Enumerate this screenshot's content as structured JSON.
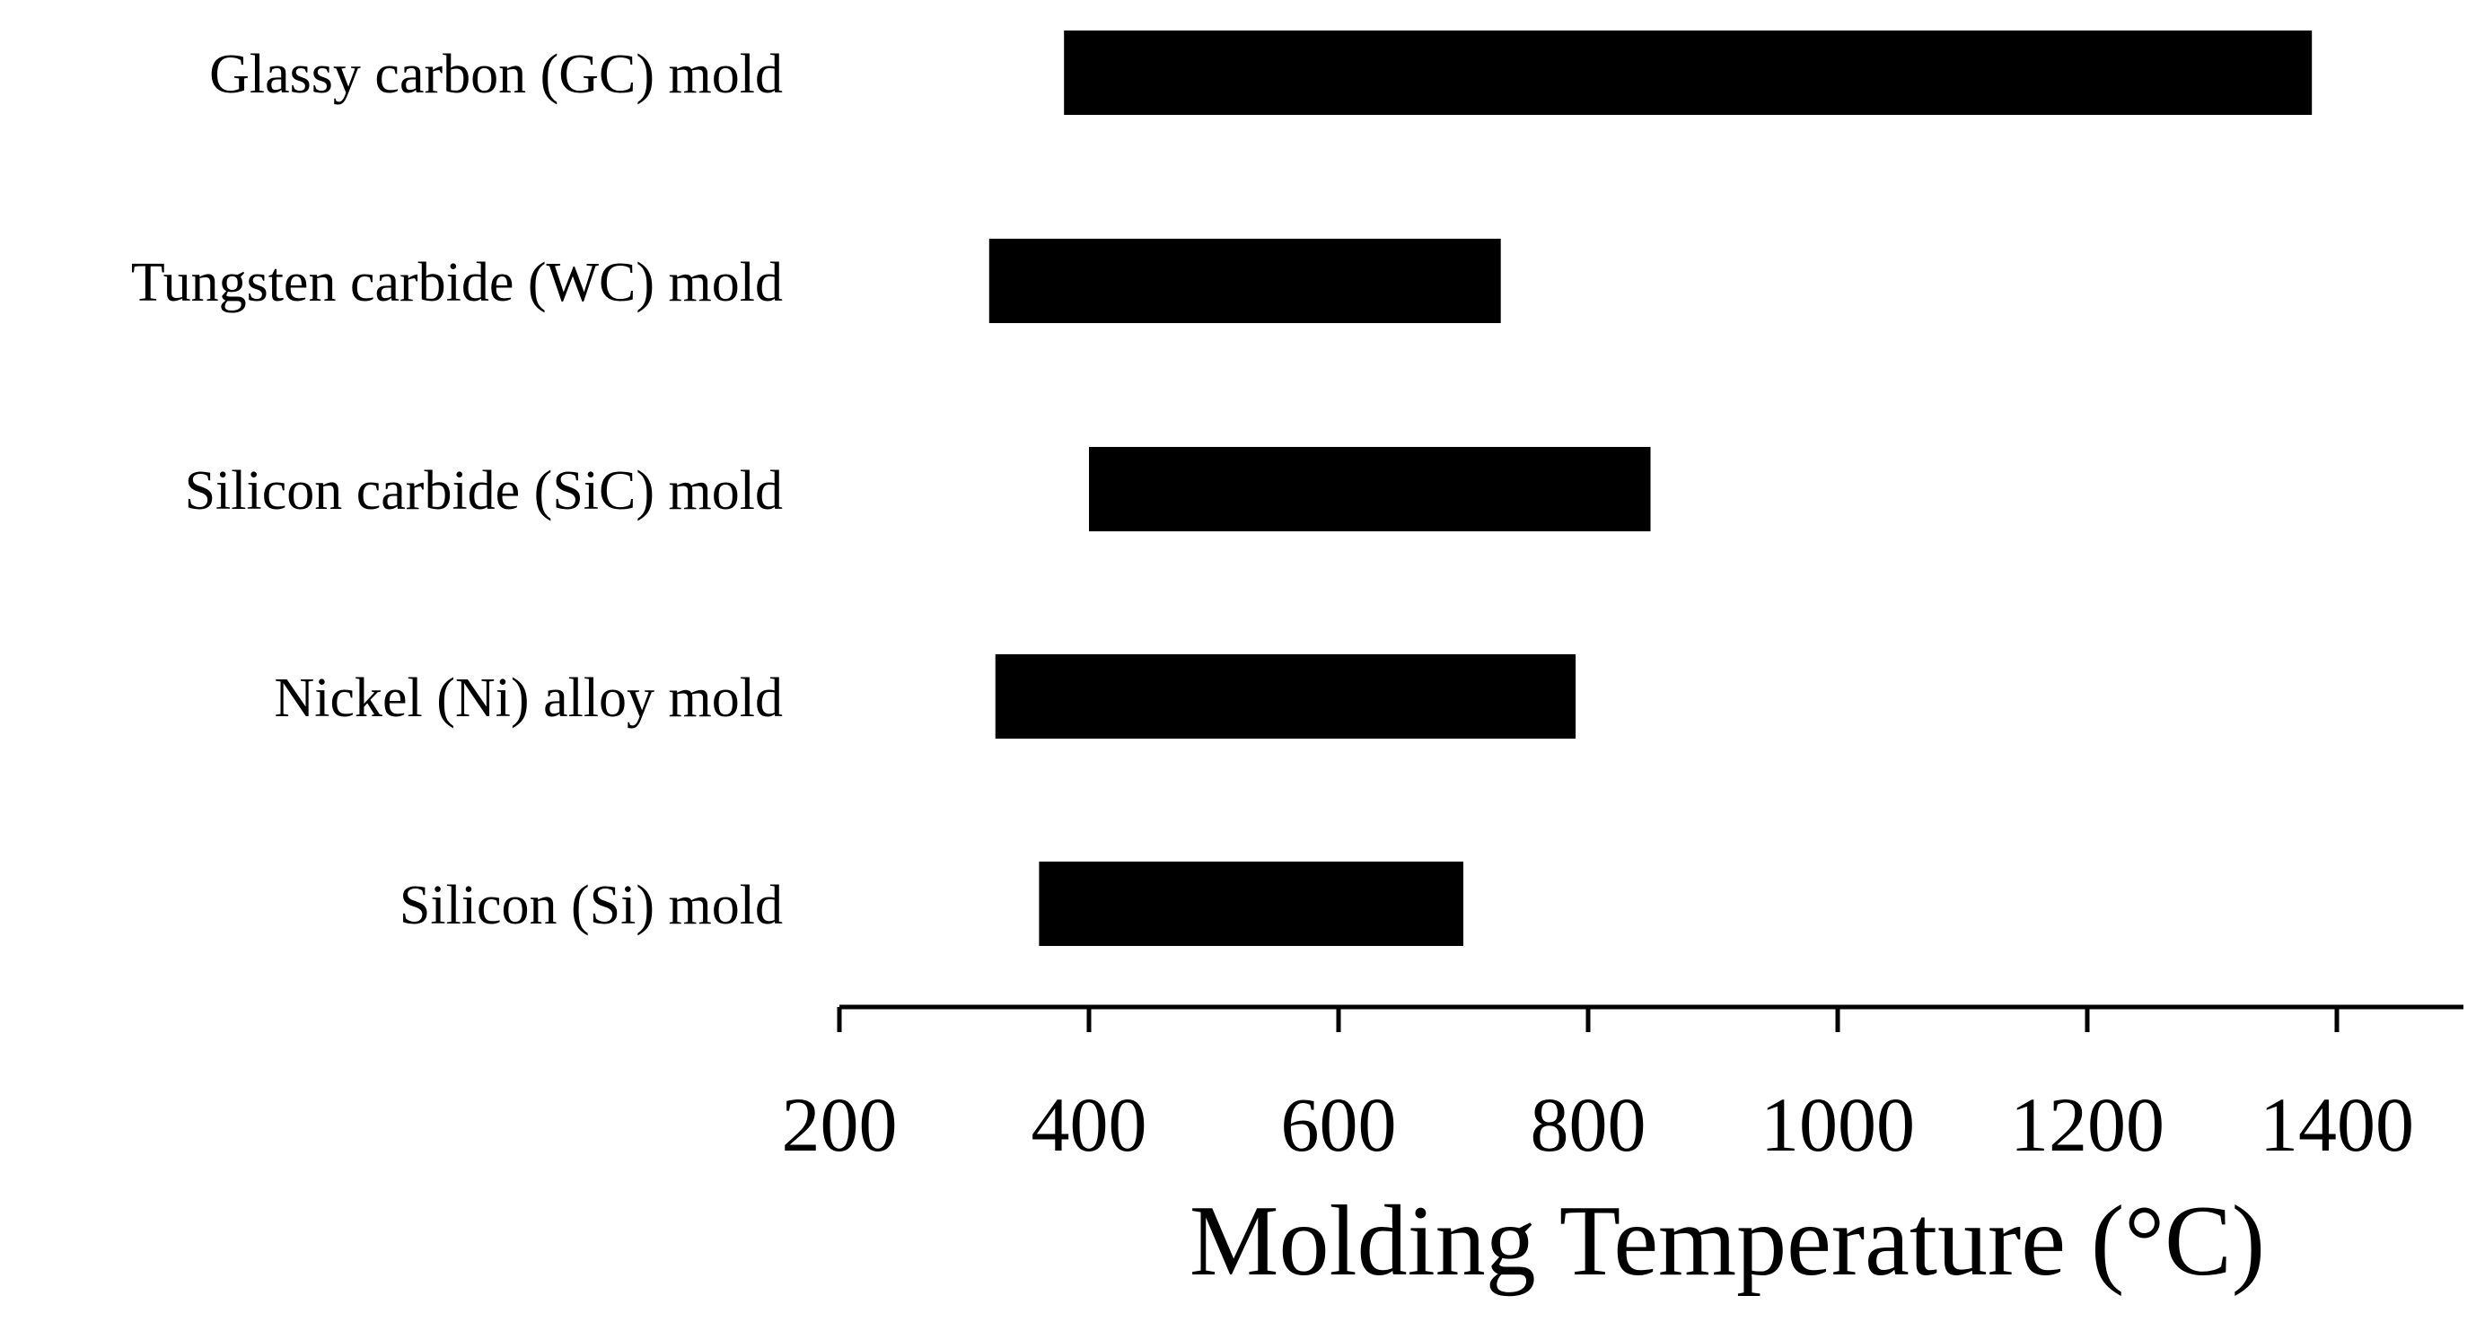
{
  "chart_data": {
    "type": "bar",
    "orientation": "horizontal",
    "subtype": "floating-range",
    "categories": [
      "Glassy carbon (GC) mold",
      "Tungsten carbide (WC) mold",
      "Silicon carbide (SiC) mold",
      "Nickel (Ni) alloy mold",
      "Silicon (Si) mold"
    ],
    "ranges": [
      [
        380,
        1380
      ],
      [
        320,
        730
      ],
      [
        400,
        850
      ],
      [
        325,
        790
      ],
      [
        360,
        700
      ]
    ],
    "xlabel": "Molding Temperature (°C)",
    "xlim": [
      200,
      1500
    ],
    "xticks": [
      200,
      400,
      600,
      800,
      1000,
      1200,
      1400
    ],
    "xtick_labels": [
      "200",
      "400",
      "600",
      "800",
      "1000",
      "1200",
      "1400"
    ],
    "grid": false,
    "legend": "none",
    "bar_color": "#000000"
  }
}
